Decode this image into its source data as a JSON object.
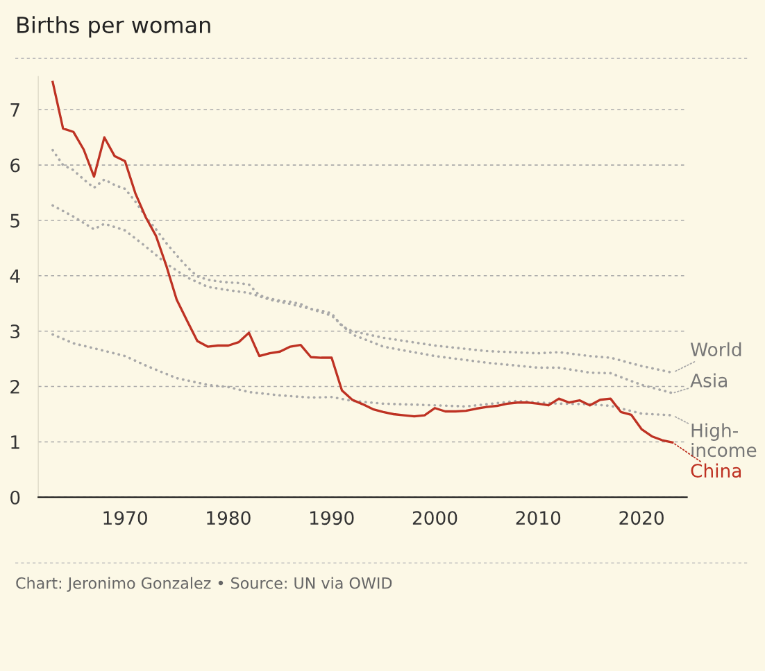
{
  "chart_data": {
    "type": "line",
    "title": "Births per woman",
    "annotations": [
      "Chart: Jeronimo Gonzalez • Source: UN via OWID"
    ],
    "xlim": [
      1961.6,
      2024.4
    ],
    "xticks": [
      1970,
      1980,
      1990,
      2000,
      2010,
      2020
    ],
    "ylim": [
      0,
      7.6
    ],
    "yticks": [
      0,
      1,
      2,
      3,
      4,
      5,
      6,
      7
    ],
    "grid": "y",
    "legend": "right",
    "marker": "none",
    "series": [
      {
        "name": "World",
        "color": "#a9a9a9",
        "line_style": "dotted",
        "x": [
          1963,
          1964,
          1965,
          1966,
          1967,
          1968,
          1969,
          1970,
          1971,
          1972,
          1973,
          1974,
          1975,
          1976,
          1977,
          1978,
          1979,
          1980,
          1981,
          1982,
          1983,
          1984,
          1985,
          1986,
          1987,
          1988,
          1989,
          1990,
          1991,
          1992,
          1995,
          2000,
          2005,
          2010,
          2012,
          2015,
          2017,
          2020,
          2023
        ],
        "values": [
          6.27,
          6.0,
          5.91,
          5.74,
          5.59,
          5.74,
          5.64,
          5.57,
          5.34,
          5.07,
          4.84,
          4.59,
          4.37,
          4.16,
          3.99,
          3.93,
          3.9,
          3.88,
          3.87,
          3.84,
          3.65,
          3.59,
          3.55,
          3.53,
          3.49,
          3.4,
          3.37,
          3.32,
          3.09,
          3.0,
          2.88,
          2.74,
          2.64,
          2.6,
          2.62,
          2.55,
          2.52,
          2.37,
          2.25
        ]
      },
      {
        "name": "Asia",
        "color": "#a9a9a9",
        "line_style": "dotted",
        "x": [
          1963,
          1965,
          1967,
          1968,
          1970,
          1972,
          1974,
          1976,
          1978,
          1980,
          1982,
          1984,
          1986,
          1988,
          1990,
          1992,
          1995,
          2000,
          2005,
          2010,
          2012,
          2015,
          2017,
          2020,
          2023
        ],
        "values": [
          5.27,
          5.07,
          4.84,
          4.94,
          4.82,
          4.53,
          4.22,
          3.97,
          3.8,
          3.74,
          3.69,
          3.57,
          3.49,
          3.4,
          3.28,
          2.94,
          2.72,
          2.55,
          2.43,
          2.34,
          2.34,
          2.25,
          2.24,
          2.03,
          1.88
        ]
      },
      {
        "name": "High-income",
        "color": "#a9a9a9",
        "line_style": "dotted",
        "x": [
          1963,
          1965,
          1967,
          1970,
          1972,
          1975,
          1978,
          1980,
          1982,
          1985,
          1988,
          1990,
          1992,
          1995,
          2000,
          2003,
          2008,
          2010,
          2012,
          2015,
          2017,
          2020,
          2023
        ],
        "values": [
          2.94,
          2.78,
          2.69,
          2.55,
          2.38,
          2.15,
          2.03,
          1.99,
          1.9,
          1.84,
          1.8,
          1.81,
          1.74,
          1.69,
          1.66,
          1.64,
          1.74,
          1.71,
          1.69,
          1.68,
          1.65,
          1.51,
          1.48
        ]
      },
      {
        "name": "China",
        "color": "#be3223",
        "line_style": "solid",
        "x": [
          1963,
          1964,
          1965,
          1966,
          1967,
          1968,
          1969,
          1970,
          1971,
          1972,
          1973,
          1974,
          1975,
          1976,
          1977,
          1978,
          1979,
          1980,
          1981,
          1982,
          1983,
          1984,
          1985,
          1986,
          1987,
          1988,
          1989,
          1990,
          1991,
          1992,
          1993,
          1994,
          1995,
          1996,
          1997,
          1998,
          1999,
          2000,
          2001,
          2002,
          2003,
          2004,
          2005,
          2006,
          2007,
          2008,
          2009,
          2010,
          2011,
          2012,
          2013,
          2014,
          2015,
          2016,
          2017,
          2018,
          2019,
          2020,
          2021,
          2022,
          2023
        ],
        "values": [
          7.5,
          6.66,
          6.6,
          6.28,
          5.79,
          6.5,
          6.16,
          6.07,
          5.49,
          5.06,
          4.72,
          4.18,
          3.57,
          3.19,
          2.82,
          2.72,
          2.74,
          2.74,
          2.8,
          2.97,
          2.55,
          2.6,
          2.63,
          2.72,
          2.75,
          2.53,
          2.52,
          2.52,
          1.93,
          1.76,
          1.68,
          1.59,
          1.54,
          1.5,
          1.48,
          1.46,
          1.48,
          1.61,
          1.55,
          1.55,
          1.56,
          1.6,
          1.63,
          1.65,
          1.69,
          1.71,
          1.71,
          1.69,
          1.66,
          1.78,
          1.71,
          1.75,
          1.66,
          1.76,
          1.78,
          1.54,
          1.49,
          1.23,
          1.1,
          1.03,
          0.99
        ]
      }
    ]
  }
}
